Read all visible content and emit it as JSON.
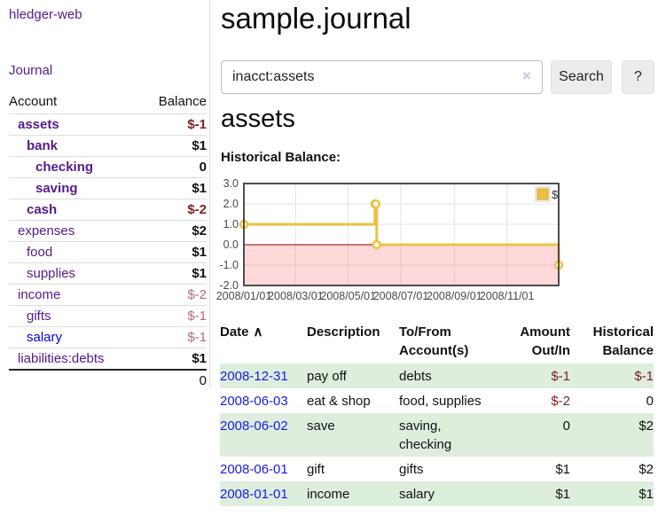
{
  "sidebar": {
    "brand": "hledger-web",
    "nav": {
      "journal": "Journal"
    },
    "accounts_table": {
      "account_header": "Account",
      "balance_header": "Balance",
      "rows": [
        {
          "name": "assets",
          "indent": 0,
          "bold": true,
          "link_color": "purple",
          "balance": "$-1",
          "balance_style": "neg-strong"
        },
        {
          "name": "bank",
          "indent": 1,
          "bold": true,
          "link_color": "purple",
          "balance": "$1",
          "balance_style": "normal"
        },
        {
          "name": "checking",
          "indent": 2,
          "bold": true,
          "link_color": "purple",
          "balance": "0",
          "balance_style": "normal"
        },
        {
          "name": "saving",
          "indent": 2,
          "bold": true,
          "link_color": "purple",
          "balance": "$1",
          "balance_style": "normal"
        },
        {
          "name": "cash",
          "indent": 1,
          "bold": true,
          "link_color": "purple",
          "balance": "$-2",
          "balance_style": "neg-strong"
        },
        {
          "name": "expenses",
          "indent": 0,
          "bold": false,
          "link_color": "purple",
          "balance": "$2",
          "balance_style": "normal"
        },
        {
          "name": "food",
          "indent": 1,
          "bold": false,
          "link_color": "purple",
          "balance": "$1",
          "balance_style": "normal"
        },
        {
          "name": "supplies",
          "indent": 1,
          "bold": false,
          "link_color": "purple",
          "balance": "$1",
          "balance_style": "normal"
        },
        {
          "name": "income",
          "indent": 0,
          "bold": false,
          "link_color": "purple",
          "balance": "$-2",
          "balance_style": "neg-muted"
        },
        {
          "name": "gifts",
          "indent": 1,
          "bold": false,
          "link_color": "purple",
          "balance": "$-1",
          "balance_style": "neg-muted"
        },
        {
          "name": "salary",
          "indent": 1,
          "bold": false,
          "link_color": "blue",
          "balance": "$-1",
          "balance_style": "neg-muted"
        },
        {
          "name": "liabilities:debts",
          "indent": 0,
          "bold": false,
          "link_color": "purple",
          "balance": "$1",
          "balance_style": "normal"
        }
      ],
      "total": "0"
    }
  },
  "header": {
    "title": "sample.journal"
  },
  "search": {
    "value": "inacct:assets",
    "clear_icon": "×",
    "search_button": "Search",
    "help_button": "?"
  },
  "register_section": {
    "account_title": "assets",
    "chart_label": "Historical Balance:"
  },
  "chart_data": {
    "type": "line",
    "step": true,
    "title": "Historical Balance",
    "series": [
      {
        "name": "$",
        "color": "#edc240",
        "points": [
          [
            "2008-01-01",
            1
          ],
          [
            "2008-06-01",
            2
          ],
          [
            "2008-06-02",
            2
          ],
          [
            "2008-06-03",
            0
          ],
          [
            "2008-12-31",
            -1
          ]
        ]
      }
    ],
    "x_range": [
      "2008-01-01",
      "2008-12-31"
    ],
    "ylim": [
      -2,
      3
    ],
    "yticks": [
      3,
      2,
      1,
      0,
      -1,
      -2
    ],
    "xticks": [
      {
        "date": "2008-01-01",
        "label": "2008/01/01"
      },
      {
        "date": "2008-03-01",
        "label": "2008/03/01"
      },
      {
        "date": "2008-05-01",
        "label": "2008/05/01"
      },
      {
        "date": "2008-07-01",
        "label": "2008/07/01"
      },
      {
        "date": "2008-09-01",
        "label": "2008/09/01"
      },
      {
        "date": "2008-11-01",
        "label": "2008/11/01"
      }
    ],
    "grid": true,
    "legend_position": "top-right",
    "negative_region_shaded_below": 0,
    "colors": {
      "line": "#edc240",
      "negative_fill": "#fbdada",
      "zero_line": "#8b0000",
      "border": "#4d4d4d"
    }
  },
  "register": {
    "headers": [
      {
        "label": "Date"
      },
      {
        "label": "Description"
      },
      {
        "label": "To/From Account(s)"
      },
      {
        "label": "Amount Out/In"
      },
      {
        "label": "Historical Balance"
      }
    ],
    "sort_indicator": "∧",
    "rows": [
      {
        "date": "2008-12-31",
        "description": "pay off",
        "accounts": "debts",
        "amount": "$-1",
        "amount_negative": true,
        "balance": "$-1",
        "balance_negative": true,
        "highlight": true
      },
      {
        "date": "2008-06-03",
        "description": "eat & shop",
        "accounts": "food, supplies",
        "amount": "$-2",
        "amount_negative": true,
        "balance": "0",
        "balance_negative": false,
        "highlight": false
      },
      {
        "date": "2008-06-02",
        "description": "save",
        "accounts": "saving, checking",
        "amount": "0",
        "amount_negative": false,
        "balance": "$2",
        "balance_negative": false,
        "highlight": true
      },
      {
        "date": "2008-06-01",
        "description": "gift",
        "accounts": "gifts",
        "amount": "$1",
        "amount_negative": false,
        "balance": "$2",
        "balance_negative": false,
        "highlight": false
      },
      {
        "date": "2008-01-01",
        "description": "income",
        "accounts": "salary",
        "amount": "$1",
        "amount_negative": false,
        "balance": "$1",
        "balance_negative": false,
        "highlight": true
      }
    ]
  },
  "colors": {
    "link_purple": "#551a8b",
    "link_blue": "#0000ee",
    "negative_strong": "#7d2025",
    "negative_muted": "#b56e72",
    "row_highlight_green": "#ddeedd",
    "chart_line_gold": "#edc240"
  }
}
